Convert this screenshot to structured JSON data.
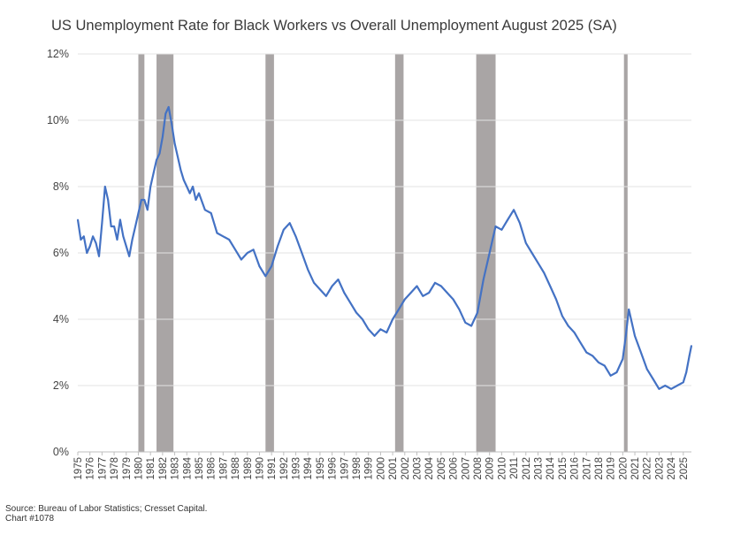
{
  "chart_data": {
    "type": "line",
    "title": "US Unemployment Rate for Black Workers vs Overall Unemployment August 2025 (SA)",
    "xlabel": "",
    "ylabel": "",
    "xlim": [
      1975,
      2025.67
    ],
    "ylim": [
      0,
      12
    ],
    "y_ticks": [
      "0%",
      "2%",
      "4%",
      "6%",
      "8%",
      "10%",
      "12%"
    ],
    "x_ticks": [
      "1975",
      "1976",
      "1977",
      "1978",
      "1979",
      "1980",
      "1981",
      "1982",
      "1983",
      "1984",
      "1985",
      "1986",
      "1987",
      "1988",
      "1989",
      "1990",
      "1991",
      "1992",
      "1993",
      "1994",
      "1995",
      "1996",
      "1997",
      "1998",
      "1999",
      "2000",
      "2001",
      "2002",
      "2003",
      "2004",
      "2005",
      "2006",
      "2007",
      "2008",
      "2009",
      "2010",
      "2011",
      "2012",
      "2013",
      "2014",
      "2015",
      "2016",
      "2017",
      "2018",
      "2019",
      "2020",
      "2021",
      "2022",
      "2023",
      "2024",
      "2025"
    ],
    "grid": true,
    "legend": "none",
    "line_color": "#4472c4",
    "recession_color": "#a9a5a5",
    "recessions": [
      [
        1980.0,
        1980.5
      ],
      [
        1981.5,
        1982.9
      ],
      [
        1990.5,
        1991.2
      ],
      [
        2001.2,
        2001.9
      ],
      [
        2007.9,
        2009.5
      ],
      [
        2020.1,
        2020.4
      ]
    ],
    "series": [
      {
        "x": [
          1975.0,
          1975.25,
          1975.5,
          1975.75,
          1976.0,
          1976.25,
          1976.5,
          1976.75,
          1977.0,
          1977.25,
          1977.5,
          1977.75,
          1978.0,
          1978.25,
          1978.5,
          1978.75,
          1979.0,
          1979.25,
          1979.5,
          1979.75,
          1980.0,
          1980.25,
          1980.5,
          1980.75,
          1981.0,
          1981.25,
          1981.5,
          1981.75,
          1982.0,
          1982.25,
          1982.5,
          1982.75,
          1983.0,
          1983.25,
          1983.5,
          1983.75,
          1984.0,
          1984.25,
          1984.5,
          1984.75,
          1985.0,
          1985.5,
          1986.0,
          1986.5,
          1987.0,
          1987.5,
          1988.0,
          1988.5,
          1989.0,
          1989.5,
          1990.0,
          1990.5,
          1991.0,
          1991.5,
          1992.0,
          1992.5,
          1993.0,
          1993.5,
          1994.0,
          1994.5,
          1995.0,
          1995.5,
          1996.0,
          1996.5,
          1997.0,
          1997.5,
          1998.0,
          1998.5,
          1999.0,
          1999.5,
          2000.0,
          2000.5,
          2001.0,
          2001.5,
          2002.0,
          2002.5,
          2003.0,
          2003.5,
          2004.0,
          2004.5,
          2005.0,
          2005.5,
          2006.0,
          2006.5,
          2007.0,
          2007.5,
          2008.0,
          2008.5,
          2009.0,
          2009.5,
          2010.0,
          2010.5,
          2011.0,
          2011.5,
          2012.0,
          2012.5,
          2013.0,
          2013.5,
          2014.0,
          2014.5,
          2015.0,
          2015.5,
          2016.0,
          2016.5,
          2017.0,
          2017.5,
          2018.0,
          2018.5,
          2019.0,
          2019.5,
          2020.0,
          2020.25,
          2020.5,
          2020.75,
          2021.0,
          2021.5,
          2022.0,
          2022.5,
          2023.0,
          2023.5,
          2024.0,
          2024.5,
          2025.0,
          2025.25,
          2025.5,
          2025.67
        ],
        "values": [
          7.0,
          6.4,
          6.5,
          6.0,
          6.2,
          6.5,
          6.3,
          5.9,
          6.9,
          8.0,
          7.6,
          6.8,
          6.8,
          6.4,
          7.0,
          6.5,
          6.2,
          5.9,
          6.4,
          6.8,
          7.2,
          7.6,
          7.6,
          7.3,
          8.0,
          8.4,
          8.8,
          9.0,
          9.5,
          10.2,
          10.4,
          9.9,
          9.3,
          8.9,
          8.5,
          8.2,
          8.0,
          7.8,
          8.0,
          7.6,
          7.8,
          7.3,
          7.2,
          6.6,
          6.5,
          6.4,
          6.1,
          5.8,
          6.0,
          6.1,
          5.6,
          5.3,
          5.6,
          6.2,
          6.7,
          6.9,
          6.5,
          6.0,
          5.5,
          5.1,
          4.9,
          4.7,
          5.0,
          5.2,
          4.8,
          4.5,
          4.2,
          4.0,
          3.7,
          3.5,
          3.7,
          3.6,
          4.0,
          4.3,
          4.6,
          4.8,
          5.0,
          4.7,
          4.8,
          5.1,
          5.0,
          4.8,
          4.6,
          4.3,
          3.9,
          3.8,
          4.2,
          5.2,
          6.0,
          6.8,
          6.7,
          7.0,
          7.3,
          6.9,
          6.3,
          6.0,
          5.7,
          5.4,
          5.0,
          4.6,
          4.1,
          3.8,
          3.6,
          3.3,
          3.0,
          2.9,
          2.7,
          2.6,
          2.3,
          2.4,
          2.8,
          3.5,
          4.3,
          3.9,
          3.5,
          3.0,
          2.5,
          2.2,
          1.9,
          2.0,
          1.9,
          2.0,
          2.1,
          2.4,
          2.9,
          3.2
        ]
      }
    ]
  },
  "footer": {
    "source": "Source: Bureau of Labor Statistics; Cresset Capital.",
    "chart_id": "Chart #1078"
  }
}
